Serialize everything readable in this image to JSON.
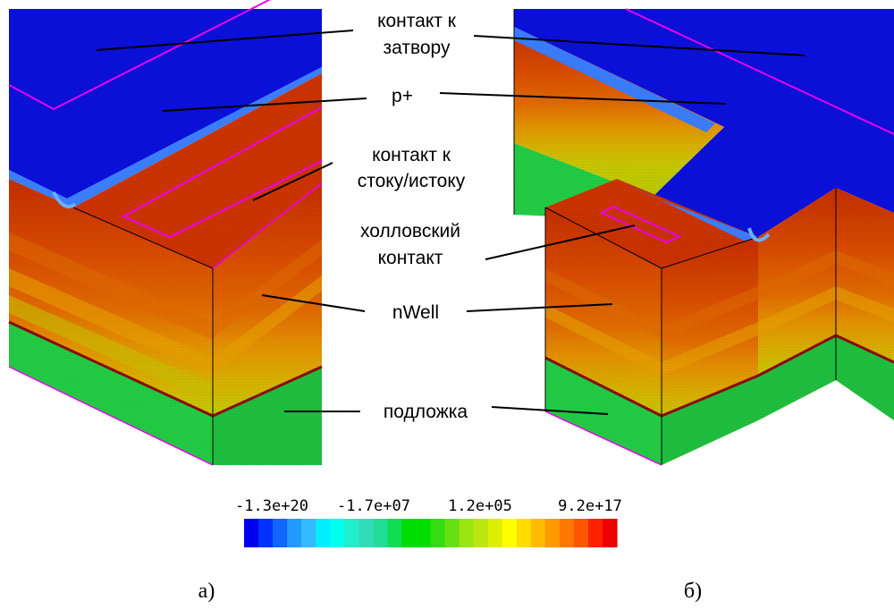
{
  "figure": {
    "labels": {
      "gate_contact_1": "контакт к",
      "gate_contact_2": "затвору",
      "p_plus": "p+",
      "drain_source_1": "контакт к",
      "drain_source_2": "стоку/истоку",
      "hall_1": "холловский",
      "hall_2": "контакт",
      "nwell": "nWell",
      "substrate": "подложка"
    },
    "captions": {
      "left": "а)",
      "right": "б)"
    }
  },
  "colorbar": {
    "tick_labels": [
      "-1.3e+20",
      "-1.7e+07",
      "1.2e+05",
      "9.2e+17"
    ],
    "colors": [
      "#0000ee",
      "#0033ff",
      "#1166ff",
      "#2299ff",
      "#33bbff",
      "#00eeff",
      "#00ffee",
      "#22eecc",
      "#33ddbb",
      "#22dd99",
      "#11dd55",
      "#00dd00",
      "#00dd00",
      "#33dd11",
      "#66e011",
      "#99e611",
      "#bbe611",
      "#ddee00",
      "#ffff00",
      "#ffdd00",
      "#ffbb00",
      "#ff9900",
      "#ff7700",
      "#ff5500",
      "#ff2200",
      "#ee0000"
    ]
  },
  "colors": {
    "gate_blue": "#0a10d6",
    "p_red": "#cc3300",
    "outline_magenta": "#ee00ee",
    "substrate_green": "#22cc44",
    "junction": "#8a0a00"
  }
}
